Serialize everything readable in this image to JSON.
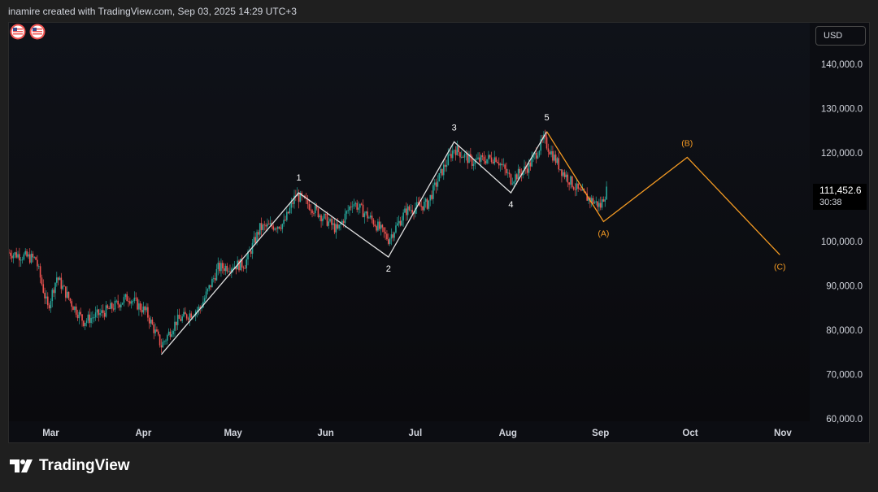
{
  "header": {
    "caption": "inamire created with TradingView.com, Sep 03, 2025 14:29 UTC+3"
  },
  "currency": "USD",
  "last_price": "111,452.6",
  "countdown": "30:38",
  "footer": {
    "brand": "TradingView"
  },
  "icons": {
    "logo": "tradingview-logo-icon",
    "flags": "us-flag-icon"
  },
  "colors": {
    "background": "#0c0d12",
    "up": "#26a69a",
    "down": "#ef5350",
    "impulse_wave": "#e0e0e0",
    "correction_wave": "#f59b23"
  },
  "chart_data": {
    "type": "candlestick",
    "title": "",
    "xlabel": "",
    "ylabel": "",
    "x_ticks": [
      "Mar",
      "Apr",
      "May",
      "Jun",
      "Jul",
      "Aug",
      "Sep",
      "Oct",
      "Nov"
    ],
    "y_ticks": [
      "140,000.0",
      "130,000.0",
      "120,000.0",
      "110,000.0",
      "100,000.0",
      "90,000.0",
      "80,000.0",
      "70,000.0",
      "60,000.0"
    ],
    "ylim": [
      60000,
      145000
    ],
    "x_range": [
      "2025-02-15",
      "2025-11-10"
    ],
    "price_path": [
      [
        "2025-02-15",
        97500
      ],
      [
        "2025-02-24",
        96000
      ],
      [
        "2025-02-28",
        85000
      ],
      [
        "2025-03-03",
        92000
      ],
      [
        "2025-03-08",
        86000
      ],
      [
        "2025-03-12",
        82000
      ],
      [
        "2025-03-20",
        84500
      ],
      [
        "2025-03-27",
        87500
      ],
      [
        "2025-04-02",
        84000
      ],
      [
        "2025-04-07",
        76500
      ],
      [
        "2025-04-12",
        82000
      ],
      [
        "2025-04-20",
        85000
      ],
      [
        "2025-04-26",
        94000
      ],
      [
        "2025-05-05",
        95000
      ],
      [
        "2025-05-10",
        103000
      ],
      [
        "2025-05-18",
        104000
      ],
      [
        "2025-05-22",
        110500
      ],
      [
        "2025-05-27",
        108000
      ],
      [
        "2025-06-05",
        102500
      ],
      [
        "2025-06-10",
        109000
      ],
      [
        "2025-06-17",
        104500
      ],
      [
        "2025-06-22",
        100500
      ],
      [
        "2025-06-28",
        107000
      ],
      [
        "2025-07-05",
        108500
      ],
      [
        "2025-07-10",
        116000
      ],
      [
        "2025-07-14",
        121000
      ],
      [
        "2025-07-20",
        118000
      ],
      [
        "2025-07-28",
        119000
      ],
      [
        "2025-08-02",
        114000
      ],
      [
        "2025-08-08",
        117000
      ],
      [
        "2025-08-13",
        123000
      ],
      [
        "2025-08-19",
        116000
      ],
      [
        "2025-08-25",
        111000
      ],
      [
        "2025-09-01",
        108000
      ],
      [
        "2025-09-02",
        110000
      ],
      [
        "2025-09-03",
        111452.6
      ]
    ],
    "wave_labels_impulse": [
      {
        "label": "1",
        "date": "2025-05-23",
        "price": 111000
      },
      {
        "label": "2",
        "date": "2025-06-22",
        "price": 96500
      },
      {
        "label": "3",
        "date": "2025-07-14",
        "price": 122500
      },
      {
        "label": "4",
        "date": "2025-08-02",
        "price": 111000
      },
      {
        "label": "5",
        "date": "2025-08-14",
        "price": 124800
      }
    ],
    "impulse_path": [
      [
        "2025-04-07",
        74500
      ],
      [
        "2025-05-23",
        111000
      ],
      [
        "2025-06-22",
        96500
      ],
      [
        "2025-07-14",
        122500
      ],
      [
        "2025-08-02",
        111000
      ],
      [
        "2025-08-14",
        124800
      ]
    ],
    "wave_labels_correction": [
      {
        "label": "(A)",
        "date": "2025-09-02",
        "price": 104500
      },
      {
        "label": "(B)",
        "date": "2025-09-30",
        "price": 119000
      },
      {
        "label": "(C)",
        "date": "2025-10-31",
        "price": 97000
      }
    ],
    "correction_path": [
      [
        "2025-08-14",
        124800
      ],
      [
        "2025-09-02",
        104500
      ],
      [
        "2025-09-30",
        119000
      ],
      [
        "2025-10-31",
        97000
      ]
    ]
  }
}
